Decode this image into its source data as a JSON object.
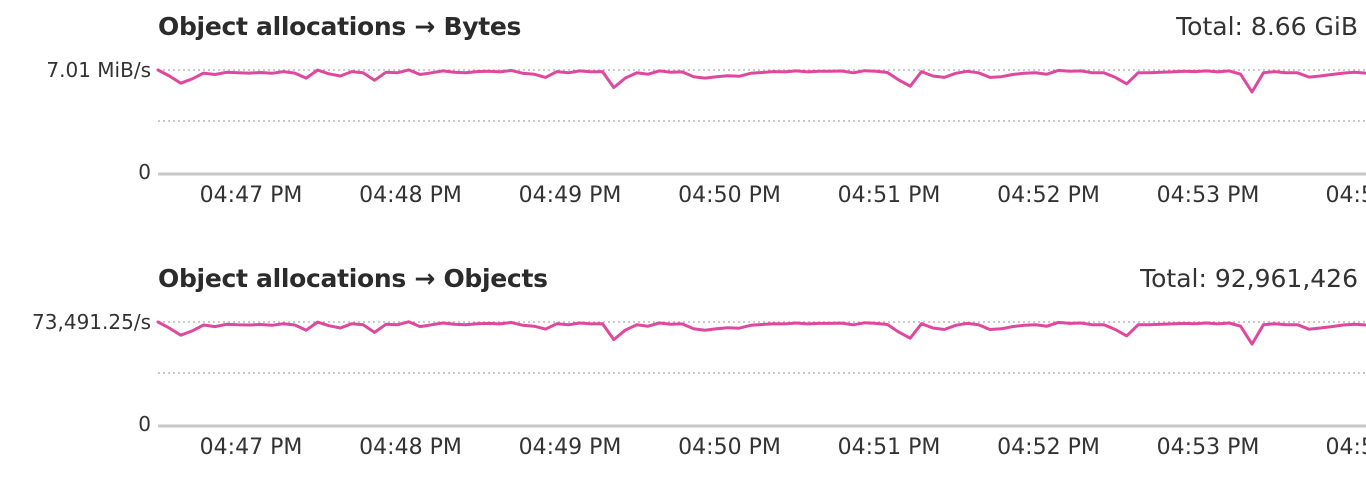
{
  "panels": [
    {
      "title": "Object allocations → Bytes",
      "total": "Total: 8.66 GiB"
    },
    {
      "title": "Object allocations → Objects",
      "total": "Total: 92,961,426"
    }
  ],
  "colors": {
    "series": "#e0479e",
    "axis": "#c8c8c8",
    "grid": "#aaaaaa"
  },
  "chart_data": [
    {
      "type": "line",
      "title": "Object allocations → Bytes",
      "y_ticks": [
        "7.01 MiB/s",
        "0"
      ],
      "x_ticks": [
        "04:47 PM",
        "04:48 PM",
        "04:49 PM",
        "04:50 PM",
        "04:51 PM",
        "04:52 PM",
        "04:53 PM",
        "04:5"
      ],
      "ylim": [
        0,
        7.01
      ],
      "y_unit": "MiB/s",
      "grid": true,
      "series": [
        {
          "values": [
            7.01,
            6.6,
            6.1,
            6.4,
            6.8,
            6.7,
            6.85,
            6.82,
            6.8,
            6.84,
            6.78,
            6.9,
            6.8,
            6.45,
            7.0,
            6.75,
            6.6,
            6.9,
            6.82,
            6.3,
            6.85,
            6.82,
            7.02,
            6.7,
            6.82,
            6.95,
            6.86,
            6.82,
            6.9,
            6.92,
            6.88,
            6.98,
            6.78,
            6.72,
            6.5,
            6.9,
            6.82,
            6.95,
            6.88,
            6.9,
            5.8,
            6.45,
            6.82,
            6.72,
            6.95,
            6.86,
            6.88,
            6.55,
            6.45,
            6.55,
            6.62,
            6.58,
            6.78,
            6.84,
            6.9,
            6.88,
            6.95,
            6.88,
            6.92,
            6.92,
            6.94,
            6.82,
            6.96,
            6.92,
            6.84,
            6.32,
            5.9,
            6.9,
            6.6,
            6.5,
            6.78,
            6.92,
            6.82,
            6.5,
            6.55,
            6.7,
            6.78,
            6.82,
            6.72,
            6.98,
            6.92,
            6.95,
            6.82,
            6.82,
            6.5,
            6.06,
            6.82,
            6.82,
            6.86,
            6.88,
            6.92,
            6.9,
            6.95,
            6.88,
            6.95,
            6.72,
            5.5,
            6.82,
            6.9,
            6.82,
            6.82,
            6.52,
            6.6,
            6.7,
            6.8,
            6.85,
            6.8
          ]
        }
      ]
    },
    {
      "type": "line",
      "title": "Object allocations → Objects",
      "y_ticks": [
        "73,491.25/s",
        "0"
      ],
      "x_ticks": [
        "04:47 PM",
        "04:48 PM",
        "04:49 PM",
        "04:50 PM",
        "04:51 PM",
        "04:52 PM",
        "04:53 PM",
        "04:5"
      ],
      "ylim": [
        0,
        73491.25
      ],
      "y_unit": "/s",
      "grid": true,
      "series": [
        {
          "values": [
            73491.25,
            69100,
            63950,
            67100,
            71300,
            70200,
            71800,
            71500,
            71300,
            71700,
            71100,
            72300,
            71300,
            67600,
            73400,
            70800,
            69200,
            72300,
            71500,
            66000,
            71800,
            71500,
            73600,
            70200,
            71500,
            72800,
            71900,
            71500,
            72300,
            72500,
            72100,
            73200,
            71100,
            70500,
            68400,
            72300,
            71500,
            72800,
            72100,
            72300,
            60800,
            67600,
            71500,
            70500,
            72800,
            71900,
            72100,
            68600,
            67600,
            68600,
            69400,
            69000,
            71100,
            71700,
            72300,
            72100,
            72800,
            72100,
            72500,
            72500,
            72700,
            71500,
            72900,
            72500,
            71700,
            66200,
            61800,
            72300,
            69200,
            68100,
            71100,
            72500,
            71500,
            68100,
            68600,
            70200,
            71100,
            71500,
            70500,
            73200,
            72500,
            72800,
            71500,
            71500,
            68100,
            63500,
            71500,
            71500,
            71900,
            72100,
            72500,
            72300,
            72800,
            72100,
            72800,
            70500,
            57600,
            71500,
            72300,
            71500,
            71500,
            68300,
            69200,
            70200,
            71300,
            71800,
            71300
          ]
        }
      ]
    }
  ]
}
